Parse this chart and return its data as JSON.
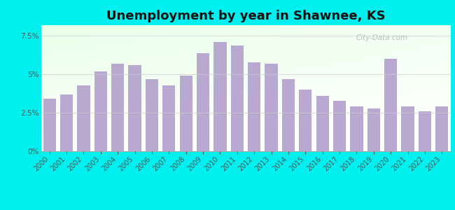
{
  "title": "Unemployment by year in Shawnee, KS",
  "years": [
    2000,
    2001,
    2002,
    2003,
    2004,
    2005,
    2006,
    2007,
    2008,
    2009,
    2010,
    2011,
    2012,
    2013,
    2014,
    2015,
    2016,
    2017,
    2018,
    2019,
    2020,
    2021,
    2022,
    2023
  ],
  "values": [
    3.4,
    3.7,
    4.3,
    5.2,
    5.7,
    5.6,
    4.7,
    4.3,
    4.9,
    6.4,
    7.1,
    6.9,
    5.8,
    5.7,
    4.7,
    4.0,
    3.6,
    3.3,
    2.9,
    2.8,
    6.0,
    2.9,
    2.6,
    2.9
  ],
  "bar_color": "#b9a9d0",
  "ylim": [
    0,
    8.2
  ],
  "yticks": [
    0,
    2.5,
    5.0,
    7.5
  ],
  "ytick_labels": [
    "0%",
    "2.5%",
    "5%",
    "7.5%"
  ],
  "title_fontsize": 13,
  "tick_fontsize": 7.5,
  "bg_outer": "#00efef",
  "watermark": "City-Data.com"
}
